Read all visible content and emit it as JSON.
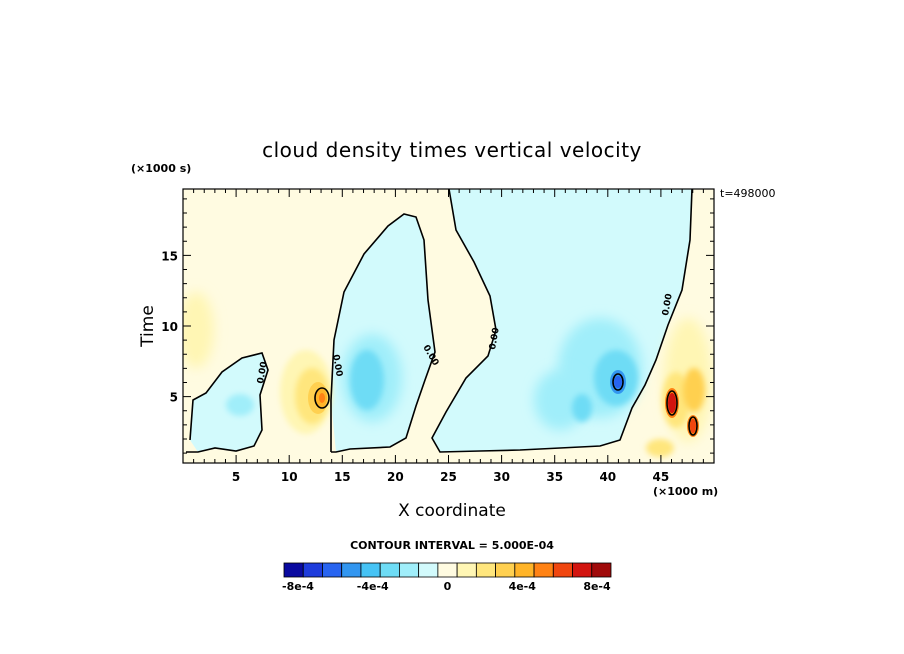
{
  "chart_data": {
    "type": "heatmap",
    "title": "cloud density times vertical velocity",
    "xlabel": "X coordinate",
    "ylabel": "Time",
    "x_unit": "(×1000 m)",
    "y_unit": "(×1000 s)",
    "time_stamp": "t=498000",
    "contour_interval_text": "CONTOUR INTERVAL = 5.000E-04",
    "contour_label": "0.00",
    "xlim": [
      0,
      50
    ],
    "ylim": [
      0.3,
      19.7
    ],
    "xticks": [
      "5",
      "10",
      "15",
      "20",
      "25",
      "30",
      "35",
      "40",
      "45"
    ],
    "xtick_values": [
      5,
      10,
      15,
      20,
      25,
      30,
      35,
      40,
      45
    ],
    "yticks": [
      "5",
      "10",
      "15"
    ],
    "ytick_values": [
      5,
      10,
      15
    ],
    "grid": false,
    "colorbar": {
      "colors": [
        "#0a0aa0",
        "#1e3cdc",
        "#2864f0",
        "#3296f0",
        "#46c3f5",
        "#6edcf5",
        "#a0eefa",
        "#d2fafc",
        "#fffbe1",
        "#fff6b4",
        "#ffe67d",
        "#ffd050",
        "#ffb428",
        "#ff8214",
        "#f0460f",
        "#d2140f",
        "#a00a0a"
      ],
      "tick_labels": [
        "-8e-4",
        "-4e-4",
        "0",
        "4e-4",
        "8e-4"
      ],
      "tick_values": [
        -0.0008,
        -0.0004,
        0,
        0.0004,
        0.0008
      ],
      "range": [
        -0.000875,
        0.000875
      ]
    },
    "features": [
      {
        "kind": "updraft_blob",
        "x": 13,
        "y": 4.8,
        "max_value": 0.0007
      },
      {
        "kind": "downdraft_blob",
        "x": 41,
        "y": 5.8,
        "min_value": -0.0006
      },
      {
        "kind": "updraft_blob",
        "x": 46,
        "y": 4.4,
        "max_value": 0.0008
      },
      {
        "kind": "updraft_blob",
        "x": 48,
        "y": 2.8,
        "max_value": 0.0008
      }
    ]
  }
}
